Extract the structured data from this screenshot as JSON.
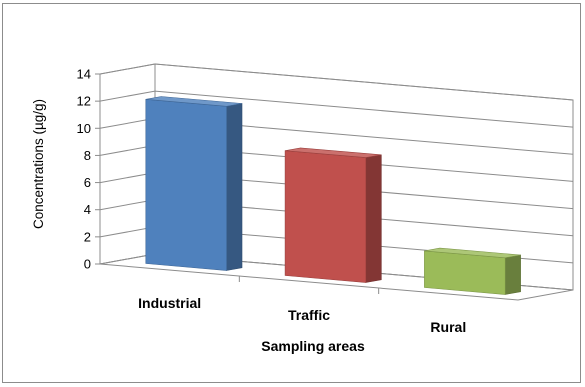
{
  "chart_data": {
    "type": "bar",
    "style": "3d-column",
    "categories": [
      "Industrial",
      "Traffic",
      "Rural"
    ],
    "values": [
      12.1,
      9.2,
      2.7
    ],
    "colors": [
      "#4f81bd",
      "#c0504d",
      "#9bbb59"
    ],
    "xlabel": "Sampling areas",
    "ylabel": "Concentrations (µg/g)",
    "ylim": [
      0,
      14
    ],
    "yticks": [
      "0",
      "2",
      "4",
      "6",
      "8",
      "10",
      "12",
      "14"
    ],
    "grid": true,
    "legend": "none"
  }
}
